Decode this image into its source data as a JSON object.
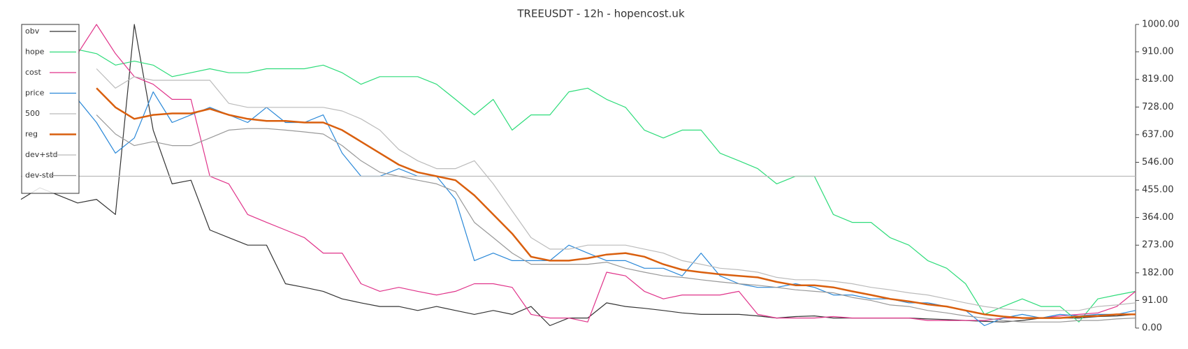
{
  "chart_data": {
    "type": "line",
    "title": "TREEUSDT - 12h - hopencost.uk",
    "ylim": [
      0,
      1000
    ],
    "yticks": [
      {
        "value": 0,
        "label": "0.00"
      },
      {
        "value": 91,
        "label": "91.00"
      },
      {
        "value": 182,
        "label": "182.00"
      },
      {
        "value": 273,
        "label": "273.00"
      },
      {
        "value": 364,
        "label": "364.00"
      },
      {
        "value": 455,
        "label": "455.00"
      },
      {
        "value": 546,
        "label": "546.00"
      },
      {
        "value": 637,
        "label": "637.00"
      },
      {
        "value": 728,
        "label": "728.00"
      },
      {
        "value": 819,
        "label": "819.00"
      },
      {
        "value": 910,
        "label": "910.00"
      },
      {
        "value": 1000,
        "label": "1000.00"
      }
    ],
    "grid": false,
    "legend": "upper left",
    "series": [
      {
        "name": "obv",
        "color": "#333333",
        "width": 1.2,
        "values": [
          424,
          462,
          437,
          412,
          424,
          374,
          1000,
          652,
          475,
          487,
          323,
          298,
          273,
          273,
          146,
          134,
          121,
          96,
          83,
          71,
          71,
          58,
          71,
          58,
          45,
          58,
          45,
          71,
          8,
          33,
          33,
          83,
          71,
          65,
          58,
          50,
          45,
          45,
          45,
          40,
          33,
          38,
          40,
          33,
          33,
          33,
          33,
          33,
          30,
          28,
          25,
          22,
          20,
          25,
          33,
          33,
          33,
          38,
          40,
          45
        ]
      },
      {
        "name": "hope",
        "color": "#2edc7a",
        "width": 1.2,
        "values": [
          null,
          null,
          null,
          917,
          904,
          866,
          879,
          866,
          828,
          841,
          854,
          841,
          841,
          854,
          854,
          854,
          866,
          841,
          803,
          828,
          828,
          828,
          803,
          753,
          702,
          753,
          652,
          702,
          702,
          778,
          790,
          753,
          727,
          652,
          626,
          652,
          652,
          576,
          551,
          525,
          475,
          500,
          500,
          374,
          348,
          348,
          298,
          273,
          222,
          197,
          146,
          45,
          71,
          96,
          71,
          71,
          20,
          96,
          109,
          121
        ]
      },
      {
        "name": "cost",
        "color": "#e0338a",
        "width": 1.2,
        "values": [
          null,
          null,
          null,
          904,
          1000,
          904,
          828,
          803,
          753,
          753,
          500,
          475,
          374,
          348,
          323,
          298,
          247,
          247,
          146,
          121,
          134,
          121,
          109,
          121,
          146,
          146,
          134,
          45,
          33,
          33,
          20,
          184,
          172,
          121,
          96,
          109,
          109,
          109,
          121,
          45,
          33,
          33,
          33,
          38,
          33,
          33,
          33,
          33,
          25,
          25,
          25,
          25,
          33,
          33,
          33,
          40,
          45,
          50,
          71,
          121
        ]
      },
      {
        "name": "price",
        "color": "#2a88d8",
        "width": 1.2,
        "values": [
          null,
          null,
          null,
          753,
          677,
          576,
          626,
          778,
          677,
          702,
          727,
          702,
          677,
          727,
          677,
          677,
          702,
          576,
          500,
          500,
          525,
          500,
          500,
          424,
          222,
          247,
          222,
          222,
          222,
          273,
          247,
          222,
          222,
          197,
          197,
          172,
          247,
          172,
          146,
          134,
          134,
          146,
          134,
          109,
          109,
          96,
          96,
          83,
          83,
          71,
          58,
          8,
          33,
          45,
          33,
          45,
          40,
          45,
          45,
          58
        ]
      },
      {
        "name": "500",
        "color": "#bbbbbb",
        "width": 1.2,
        "values": [
          500,
          500,
          500,
          500,
          500,
          500,
          500,
          500,
          500,
          500,
          500,
          500,
          500,
          500,
          500,
          500,
          500,
          500,
          500,
          500,
          500,
          500,
          500,
          500,
          500,
          500,
          500,
          500,
          500,
          500,
          500,
          500,
          500,
          500,
          500,
          500,
          500,
          500,
          500,
          500,
          500,
          500,
          500,
          500,
          500,
          500,
          500,
          500,
          500,
          500,
          500,
          500,
          500,
          500,
          500,
          500,
          500,
          500,
          500,
          500
        ]
      },
      {
        "name": "reg",
        "color": "#d95f0e",
        "width": 2.5,
        "values": [
          null,
          null,
          null,
          null,
          790,
          727,
          689,
          702,
          707,
          707,
          722,
          702,
          689,
          682,
          682,
          677,
          677,
          652,
          614,
          576,
          538,
          513,
          500,
          487,
          437,
          374,
          311,
          235,
          222,
          222,
          230,
          242,
          247,
          235,
          210,
          192,
          184,
          177,
          172,
          167,
          152,
          141,
          141,
          134,
          121,
          109,
          96,
          88,
          78,
          71,
          58,
          45,
          38,
          33,
          33,
          33,
          38,
          40,
          45,
          45
        ]
      },
      {
        "name": "dev+std",
        "color": "#bbbbbb",
        "width": 1.2,
        "values": [
          null,
          null,
          null,
          null,
          854,
          790,
          828,
          816,
          816,
          816,
          816,
          740,
          727,
          727,
          727,
          727,
          727,
          715,
          689,
          652,
          588,
          551,
          525,
          525,
          551,
          475,
          386,
          298,
          260,
          260,
          273,
          273,
          273,
          260,
          247,
          222,
          210,
          197,
          192,
          184,
          167,
          159,
          159,
          154,
          146,
          134,
          126,
          116,
          109,
          96,
          83,
          71,
          63,
          58,
          58,
          58,
          58,
          71,
          76,
          83
        ]
      },
      {
        "name": "dev-std",
        "color": "#999999",
        "width": 1.2,
        "values": [
          null,
          null,
          null,
          null,
          702,
          639,
          601,
          614,
          601,
          601,
          626,
          652,
          657,
          657,
          652,
          646,
          639,
          601,
          551,
          513,
          500,
          487,
          475,
          449,
          348,
          298,
          247,
          210,
          210,
          210,
          210,
          217,
          197,
          184,
          172,
          167,
          159,
          152,
          146,
          141,
          134,
          126,
          121,
          116,
          101,
          91,
          76,
          71,
          58,
          50,
          40,
          33,
          25,
          20,
          20,
          20,
          25,
          25,
          30,
          33
        ]
      }
    ]
  }
}
